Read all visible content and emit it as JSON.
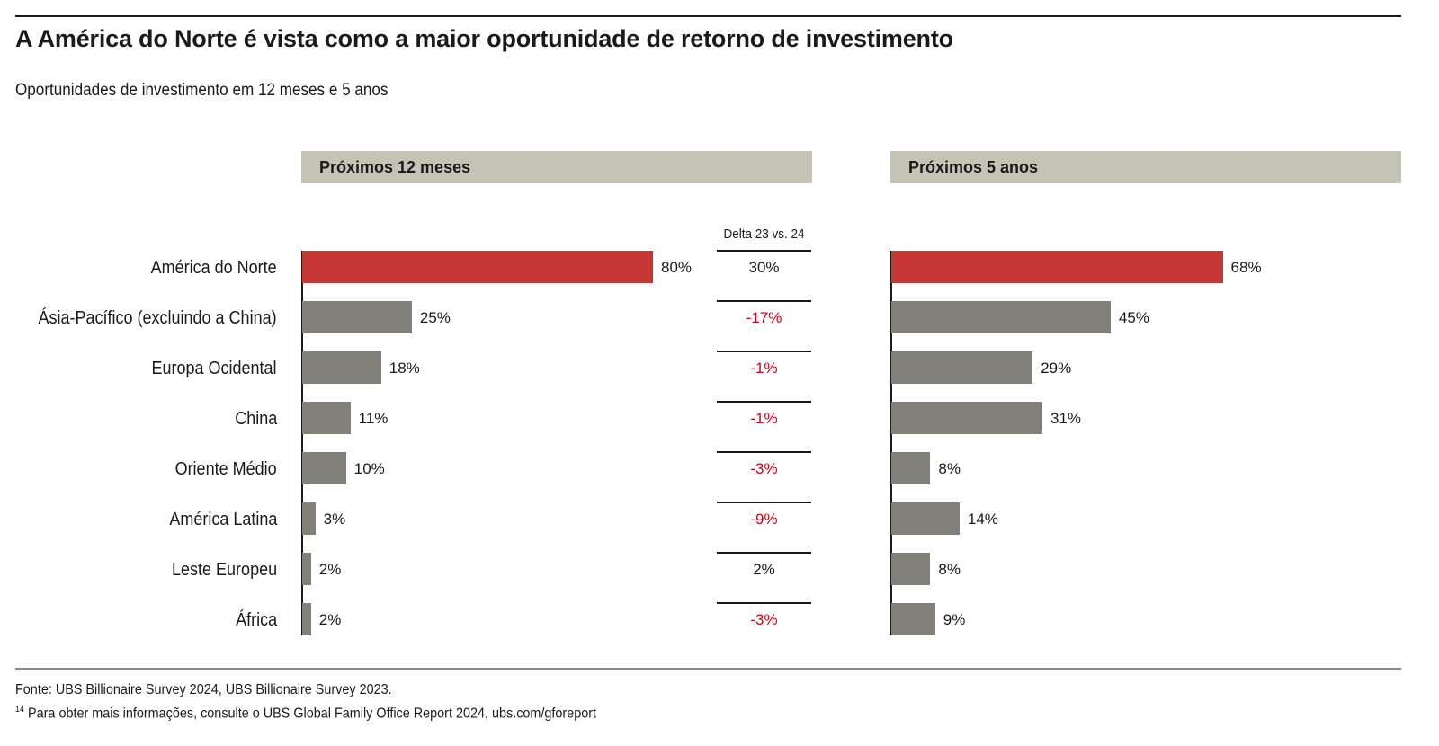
{
  "title": "A América do Norte é vista como a maior oportunidade de retorno de investimento",
  "subtitle": "Oportunidades de investimento em 12 meses e 5 anos",
  "colors": {
    "highlight": "#c63634",
    "bar": "#81807b",
    "panel_header": "#c5c3b6",
    "negative": "#d0021b",
    "text": "#1a1a1a"
  },
  "chart_data": {
    "type": "bar",
    "orientation": "horizontal",
    "categories": [
      "América do Norte",
      "Ásia-Pacífico (excluindo a China)",
      "Europa Ocidental",
      "China",
      "Oriente Médio",
      "América Latina",
      "Leste Europeu",
      "África"
    ],
    "panels": [
      {
        "title": "Próximos 12 meses",
        "values": [
          80,
          25,
          18,
          11,
          10,
          3,
          2,
          2
        ],
        "labels": [
          "80%",
          "25%",
          "18%",
          "11%",
          "10%",
          "3%",
          "2%",
          "2%"
        ],
        "highlight_index": 0
      },
      {
        "title": "Próximos 5 anos",
        "values": [
          68,
          45,
          29,
          31,
          8,
          14,
          8,
          9
        ],
        "labels": [
          "68%",
          "45%",
          "29%",
          "31%",
          "8%",
          "14%",
          "8%",
          "9%"
        ],
        "highlight_index": 0
      }
    ],
    "delta": {
      "title": "Delta 23 vs. 24",
      "values": [
        30,
        -17,
        -1,
        -1,
        -3,
        -9,
        2,
        -3
      ],
      "labels": [
        "30%",
        "-17%",
        "-1%",
        "-1%",
        "-3%",
        "-9%",
        "2%",
        "-3%"
      ]
    },
    "grid": false
  },
  "footer": {
    "source": "Fonte: UBS Billionaire Survey 2024, UBS Billionaire Survey 2023.",
    "note_marker": "14",
    "note": "Para obter mais informações, consulte o UBS Global Family Office Report 2024, ubs.com/gforeport"
  }
}
